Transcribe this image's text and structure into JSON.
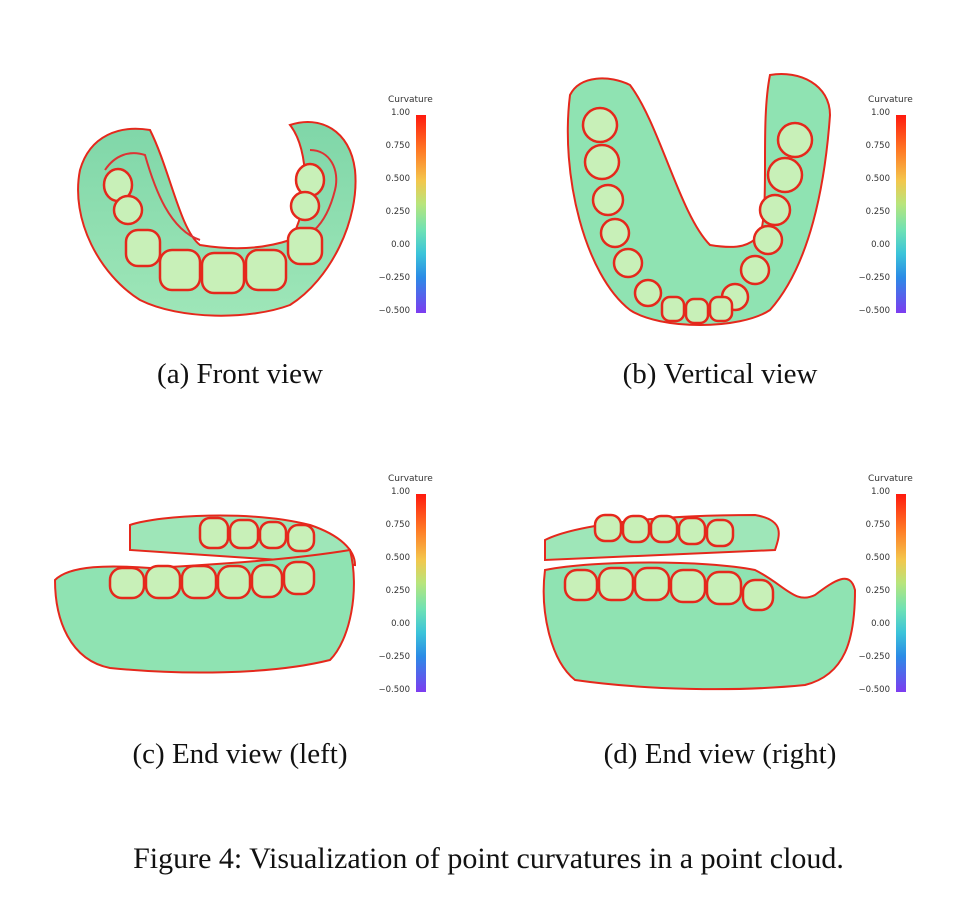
{
  "panels": [
    {
      "label": "(a)",
      "caption": "Front view"
    },
    {
      "label": "(b)",
      "caption": "Vertical view"
    },
    {
      "label": "(c)",
      "caption": "End view (left)"
    },
    {
      "label": "(d)",
      "caption": "End view (right)"
    }
  ],
  "colorbar": {
    "title": "Curvature",
    "ticks": [
      "1.00",
      "0.750",
      "0.500",
      "0.250",
      "0.00",
      "−0.250",
      "−0.500"
    ],
    "range": [
      -0.5,
      1.0
    ],
    "colors": {
      "high": "#ff1a0e",
      "mid": "#6fe2b4",
      "low": "#7d3cf0"
    }
  },
  "figure_caption": "Figure 4: Visualization of point curvatures in a point cloud.",
  "colors": {
    "surface": "#8fe3b2",
    "edge": "#e5281c",
    "shadow": "#4b7b5c"
  }
}
